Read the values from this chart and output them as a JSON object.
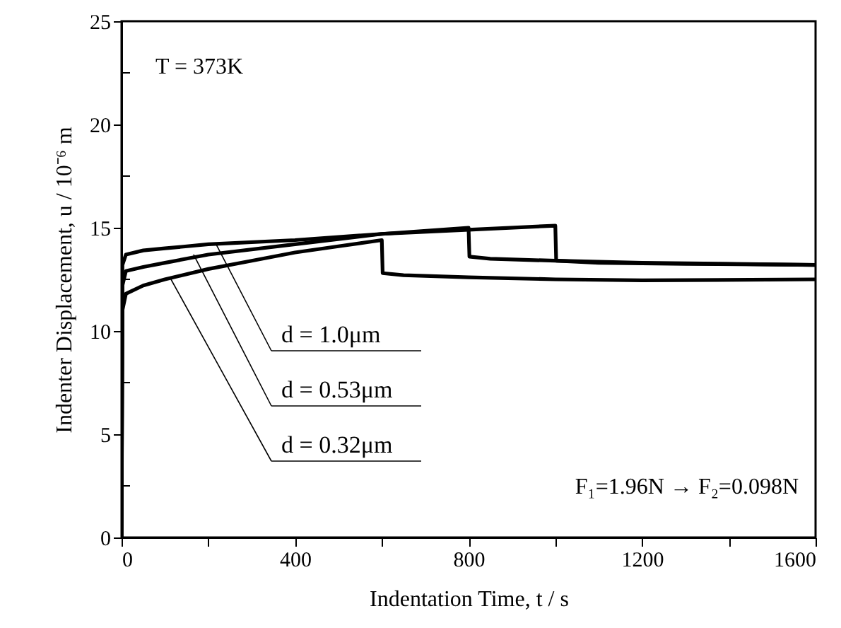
{
  "chart_data": {
    "type": "line",
    "xlabel": "Indentation Time,   t  /  s",
    "ylabel": "Indenter Displacement,   u  /  10⁻⁶ m",
    "xlim": [
      0,
      1600
    ],
    "ylim": [
      0,
      25
    ],
    "xticks": [
      0,
      {
        "value": 200,
        "label": null
      },
      400,
      {
        "value": 600,
        "label": null
      },
      800,
      {
        "value": 1000,
        "label": null
      },
      1200,
      {
        "value": 1400,
        "label": null
      },
      1600
    ],
    "yticks": [
      0,
      {
        "value": 2.5,
        "label": null
      },
      5,
      {
        "value": 7.5,
        "label": null
      },
      10,
      {
        "value": 12.5,
        "label": null
      },
      15,
      {
        "value": 17.5,
        "label": null
      },
      20,
      {
        "value": 22.5,
        "label": null
      },
      25
    ],
    "grid": false,
    "marker": "none",
    "line_style": "solid",
    "series": [
      {
        "color": "#000000",
        "x": [
          0,
          2,
          10,
          50,
          100,
          200,
          400,
          600,
          800,
          1000,
          1002,
          1100,
          1300,
          1600
        ],
        "values": [
          0,
          13.2,
          13.7,
          13.9,
          14.0,
          14.2,
          14.4,
          14.7,
          14.9,
          15.1,
          13.4,
          13.3,
          13.25,
          13.2
        ]
      },
      {
        "color": "#000000",
        "x": [
          0,
          2,
          10,
          50,
          100,
          200,
          400,
          600,
          800,
          802,
          850,
          1000,
          1200,
          1600
        ],
        "values": [
          0,
          12.2,
          12.9,
          13.1,
          13.3,
          13.7,
          14.2,
          14.7,
          15.0,
          13.6,
          13.5,
          13.4,
          13.3,
          13.2
        ]
      },
      {
        "color": "#000000",
        "x": [
          0,
          2,
          10,
          50,
          100,
          200,
          300,
          400,
          500,
          600,
          602,
          650,
          800,
          1000,
          1200,
          1600
        ],
        "values": [
          0,
          11.0,
          11.8,
          12.2,
          12.5,
          13.0,
          13.4,
          13.8,
          14.1,
          14.4,
          12.8,
          12.7,
          12.6,
          12.5,
          12.45,
          12.5
        ]
      }
    ],
    "annotations": [
      {
        "text": "d = 1.0μm",
        "x": 218,
        "y": 14.2
      },
      {
        "text": "d = 0.53μm",
        "x": 166,
        "y": 13.7
      },
      {
        "text": "d = 0.32μm",
        "x": 114,
        "y": 12.5
      },
      "T = 373K",
      "F₁=1.96N → F₂=0.098N"
    ]
  }
}
